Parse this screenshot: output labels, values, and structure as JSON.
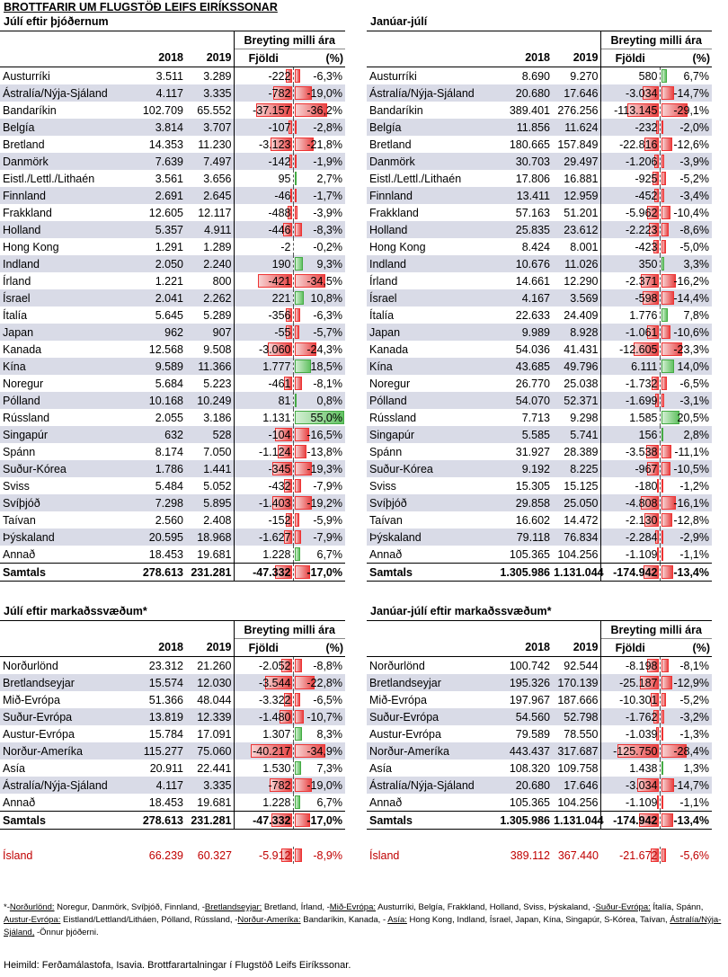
{
  "title": "BROTTFARIR UM FLUGSTÖÐ LEIFS EIRÍKSSONAR",
  "headers": {
    "y1": "2018",
    "y2": "2019",
    "change": "Breyting milli ára",
    "count": "Fjöldi",
    "pct": "(%)"
  },
  "t1": {
    "subtitle": "Júlí eftir þjóðernum",
    "rows": [
      [
        "Austurríki",
        "3.511",
        "3.289",
        "-222",
        "-6,3%",
        -6.3
      ],
      [
        "Ástralía/Nýja-Sjáland",
        "4.117",
        "3.335",
        "-782",
        "-19,0%",
        -19.0
      ],
      [
        "Bandaríkin",
        "102.709",
        "65.552",
        "-37.157",
        "-36,2%",
        -36.2
      ],
      [
        "Belgía",
        "3.814",
        "3.707",
        "-107",
        "-2,8%",
        -2.8
      ],
      [
        "Bretland",
        "14.353",
        "11.230",
        "-3.123",
        "-21,8%",
        -21.8
      ],
      [
        "Danmörk",
        "7.639",
        "7.497",
        "-142",
        "-1,9%",
        -1.9
      ],
      [
        "Eistl./Lettl./Lithaén",
        "3.561",
        "3.656",
        "95",
        "2,7%",
        2.7
      ],
      [
        "Finnland",
        "2.691",
        "2.645",
        "-46",
        "-1,7%",
        -1.7
      ],
      [
        "Frakkland",
        "12.605",
        "12.117",
        "-488",
        "-3,9%",
        -3.9
      ],
      [
        "Holland",
        "5.357",
        "4.911",
        "-446",
        "-8,3%",
        -8.3
      ],
      [
        "Hong Kong",
        "1.291",
        "1.289",
        "-2",
        "-0,2%",
        -0.2
      ],
      [
        "Indland",
        "2.050",
        "2.240",
        "190",
        "9,3%",
        9.3
      ],
      [
        "Írland",
        "1.221",
        "800",
        "-421",
        "-34,5%",
        -34.5
      ],
      [
        "Ísrael",
        "2.041",
        "2.262",
        "221",
        "10,8%",
        10.8
      ],
      [
        "Ítalía",
        "5.645",
        "5.289",
        "-356",
        "-6,3%",
        -6.3
      ],
      [
        "Japan",
        "962",
        "907",
        "-55",
        "-5,7%",
        -5.7
      ],
      [
        "Kanada",
        "12.568",
        "9.508",
        "-3.060",
        "-24,3%",
        -24.3
      ],
      [
        "Kína",
        "9.589",
        "11.366",
        "1.777",
        "18,5%",
        18.5
      ],
      [
        "Noregur",
        "5.684",
        "5.223",
        "-461",
        "-8,1%",
        -8.1
      ],
      [
        "Pólland",
        "10.168",
        "10.249",
        "81",
        "0,8%",
        0.8
      ],
      [
        "Rússland",
        "2.055",
        "3.186",
        "1.131",
        "55,0%",
        55.0
      ],
      [
        "Singapúr",
        "632",
        "528",
        "-104",
        "-16,5%",
        -16.5
      ],
      [
        "Spánn",
        "8.174",
        "7.050",
        "-1.124",
        "-13,8%",
        -13.8
      ],
      [
        "Suður-Kórea",
        "1.786",
        "1.441",
        "-345",
        "-19,3%",
        -19.3
      ],
      [
        "Sviss",
        "5.484",
        "5.052",
        "-432",
        "-7,9%",
        -7.9
      ],
      [
        "Svíþjóð",
        "7.298",
        "5.895",
        "-1.403",
        "-19,2%",
        -19.2
      ],
      [
        "Taívan",
        "2.560",
        "2.408",
        "-152",
        "-5,9%",
        -5.9
      ],
      [
        "Þýskaland",
        "20.595",
        "18.968",
        "-1.627",
        "-7,9%",
        -7.9
      ],
      [
        "Annað",
        "18.453",
        "19.681",
        "1.228",
        "6,7%",
        6.7
      ]
    ],
    "total": [
      "Samtals",
      "278.613",
      "231.281",
      "-47.332",
      "-17,0%",
      -17.0
    ]
  },
  "t2": {
    "subtitle": "Janúar-júlí",
    "rows": [
      [
        "Austurríki",
        "8.690",
        "9.270",
        "580",
        "6,7%",
        6.7
      ],
      [
        "Ástralía/Nýja-Sjáland",
        "20.680",
        "17.646",
        "-3.034",
        "-14,7%",
        -14.7
      ],
      [
        "Bandaríkin",
        "389.401",
        "276.256",
        "-113.145",
        "-29,1%",
        -29.1
      ],
      [
        "Belgía",
        "11.856",
        "11.624",
        "-232",
        "-2,0%",
        -2.0
      ],
      [
        "Bretland",
        "180.665",
        "157.849",
        "-22.816",
        "-12,6%",
        -12.6
      ],
      [
        "Danmörk",
        "30.703",
        "29.497",
        "-1.206",
        "-3,9%",
        -3.9
      ],
      [
        "Eistl./Lettl./Lithaén",
        "17.806",
        "16.881",
        "-925",
        "-5,2%",
        -5.2
      ],
      [
        "Finnland",
        "13.411",
        "12.959",
        "-452",
        "-3,4%",
        -3.4
      ],
      [
        "Frakkland",
        "57.163",
        "51.201",
        "-5.962",
        "-10,4%",
        -10.4
      ],
      [
        "Holland",
        "25.835",
        "23.612",
        "-2.223",
        "-8,6%",
        -8.6
      ],
      [
        "Hong Kong",
        "8.424",
        "8.001",
        "-423",
        "-5,0%",
        -5.0
      ],
      [
        "Indland",
        "10.676",
        "11.026",
        "350",
        "3,3%",
        3.3
      ],
      [
        "Írland",
        "14.661",
        "12.290",
        "-2.371",
        "-16,2%",
        -16.2
      ],
      [
        "Ísrael",
        "4.167",
        "3.569",
        "-598",
        "-14,4%",
        -14.4
      ],
      [
        "Ítalía",
        "22.633",
        "24.409",
        "1.776",
        "7,8%",
        7.8
      ],
      [
        "Japan",
        "9.989",
        "8.928",
        "-1.061",
        "-10,6%",
        -10.6
      ],
      [
        "Kanada",
        "54.036",
        "41.431",
        "-12.605",
        "-23,3%",
        -23.3
      ],
      [
        "Kína",
        "43.685",
        "49.796",
        "6.111",
        "14,0%",
        14.0
      ],
      [
        "Noregur",
        "26.770",
        "25.038",
        "-1.732",
        "-6,5%",
        -6.5
      ],
      [
        "Pólland",
        "54.070",
        "52.371",
        "-1.699",
        "-3,1%",
        -3.1
      ],
      [
        "Rússland",
        "7.713",
        "9.298",
        "1.585",
        "20,5%",
        20.5
      ],
      [
        "Singapúr",
        "5.585",
        "5.741",
        "156",
        "2,8%",
        2.8
      ],
      [
        "Spánn",
        "31.927",
        "28.389",
        "-3.538",
        "-11,1%",
        -11.1
      ],
      [
        "Suður-Kórea",
        "9.192",
        "8.225",
        "-967",
        "-10,5%",
        -10.5
      ],
      [
        "Sviss",
        "15.305",
        "15.125",
        "-180",
        "-1,2%",
        -1.2
      ],
      [
        "Svíþjóð",
        "29.858",
        "25.050",
        "-4.808",
        "-16,1%",
        -16.1
      ],
      [
        "Taívan",
        "16.602",
        "14.472",
        "-2.130",
        "-12,8%",
        -12.8
      ],
      [
        "Þýskaland",
        "79.118",
        "76.834",
        "-2.284",
        "-2,9%",
        -2.9
      ],
      [
        "Annað",
        "105.365",
        "104.256",
        "-1.109",
        "-1,1%",
        -1.1
      ]
    ],
    "total": [
      "Samtals",
      "1.305.986",
      "1.131.044",
      "-174.942",
      "-13,4%",
      -13.4
    ]
  },
  "t3": {
    "subtitle": "Júlí eftir markaðssvæðum*",
    "rows": [
      [
        "Norðurlönd",
        "23.312",
        "21.260",
        "-2.052",
        "-8,8%",
        -8.8
      ],
      [
        "Bretlandseyjar",
        "15.574",
        "12.030",
        "-3.544",
        "-22,8%",
        -22.8
      ],
      [
        "Mið-Evrópa",
        "51.366",
        "48.044",
        "-3.322",
        "-6,5%",
        -6.5
      ],
      [
        "Suður-Evrópa",
        "13.819",
        "12.339",
        "-1.480",
        "-10,7%",
        -10.7
      ],
      [
        "Austur-Evrópa",
        "15.784",
        "17.091",
        "1.307",
        "8,3%",
        8.3
      ],
      [
        "Norður-Ameríka",
        "115.277",
        "75.060",
        "-40.217",
        "-34,9%",
        -34.9
      ],
      [
        "Asía",
        "20.911",
        "22.441",
        "1.530",
        "7,3%",
        7.3
      ],
      [
        "Ástralía/Nýja-Sjáland",
        "4.117",
        "3.335",
        "-782",
        "-19,0%",
        -19.0
      ],
      [
        "Annað",
        "18.453",
        "19.681",
        "1.228",
        "6,7%",
        6.7
      ]
    ],
    "total": [
      "Samtals",
      "278.613",
      "231.281",
      "-47.332",
      "-17,0%",
      -17.0
    ],
    "island": [
      "Ísland",
      "66.239",
      "60.327",
      "-5.912",
      "-8,9%",
      -8.9
    ]
  },
  "t4": {
    "subtitle": "Janúar-júlí eftir markaðssvæðum*",
    "rows": [
      [
        "Norðurlönd",
        "100.742",
        "92.544",
        "-8.198",
        "-8,1%",
        -8.1
      ],
      [
        "Bretlandseyjar",
        "195.326",
        "170.139",
        "-25.187",
        "-12,9%",
        -12.9
      ],
      [
        "Mið-Evrópa",
        "197.967",
        "187.666",
        "-10.301",
        "-5,2%",
        -5.2
      ],
      [
        "Suður-Evrópa",
        "54.560",
        "52.798",
        "-1.762",
        "-3,2%",
        -3.2
      ],
      [
        "Austur-Evrópa",
        "79.589",
        "78.550",
        "-1.039",
        "-1,3%",
        -1.3
      ],
      [
        "Norður-Ameríka",
        "443.437",
        "317.687",
        "-125.750",
        "-28,4%",
        -28.4
      ],
      [
        "Asía",
        "108.320",
        "109.758",
        "1.438",
        "1,3%",
        1.3
      ],
      [
        "Ástralía/Nýja-Sjáland",
        "20.680",
        "17.646",
        "-3.034",
        "-14,7%",
        -14.7
      ],
      [
        "Annað",
        "105.365",
        "104.256",
        "-1.109",
        "-1,1%",
        -1.1
      ]
    ],
    "total": [
      "Samtals",
      "1.305.986",
      "1.131.044",
      "-174.942",
      "-13,4%",
      -13.4
    ],
    "island": [
      "Ísland",
      "389.112",
      "367.440",
      "-21.672",
      "-5,6%",
      -5.6
    ]
  },
  "footnote": [
    [
      "*-",
      ""
    ],
    [
      "u",
      "Norðurlönd:"
    ],
    [
      "",
      " Noregur, Danmörk, Svíþjóð, Finnland, -"
    ],
    [
      "u",
      "Bretlandseyjar:"
    ],
    [
      "",
      " Bretland, Írland, -"
    ],
    [
      "u",
      "Mið-Evrópa:"
    ],
    [
      "",
      "  Austurríki, Belgía, Frakkland, Holland, Sviss, Þýskaland, -"
    ],
    [
      "u",
      "Suður-Evrópa:"
    ],
    [
      "",
      " Ítalía, Spánn, "
    ],
    [
      "u",
      "Austur-Evrópa:"
    ],
    [
      "",
      " Eistland/Lettland/Litháen, Pólland, Rússland, -"
    ],
    [
      "u",
      "Norður-Ameríka:"
    ],
    [
      "",
      "  Bandaríkin, Kanada, - "
    ],
    [
      "u",
      "Asía:"
    ],
    [
      "",
      "  Hong Kong, Indland, Ísrael, Japan, Kína, Singapúr, S-Kórea, Taívan, "
    ],
    [
      "u",
      "Ástralía/Nýja-Sjáland,"
    ],
    [
      "",
      " -Önnur þjóðerni."
    ]
  ],
  "source": "Heimild: Ferðamálastofa, Isavia. Brottfarartalningar í Flugstöð Leifs Eiríkssonar.",
  "colors": {
    "negative": "#e84545",
    "positive": "#63c263",
    "island": "#c00000",
    "stripe": "#d9dbe7"
  }
}
